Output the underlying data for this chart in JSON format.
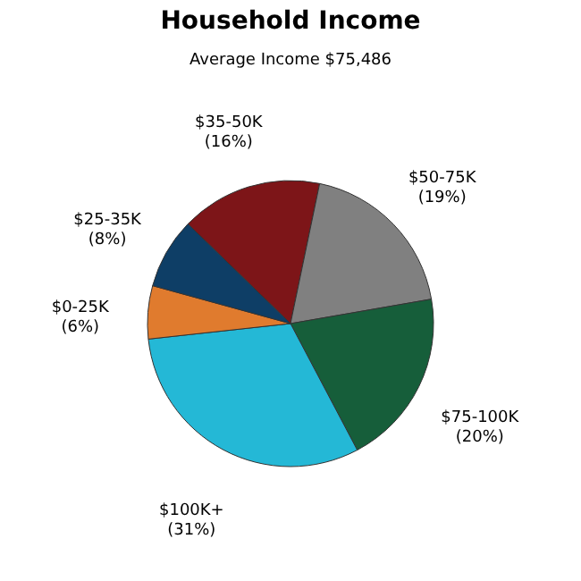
{
  "chart_data": {
    "type": "pie",
    "title": "Household Income",
    "subtitle": "Average Income  $75,486",
    "categories": [
      "$35-50K",
      "$50-75K",
      "$75-100K",
      "$100K+",
      "$0-25K",
      "$25-35K"
    ],
    "values": [
      16,
      19,
      20,
      31,
      6,
      8
    ],
    "value_labels": [
      "(16%)",
      "(19%)",
      "(20%)",
      "(31%)",
      "(6%)",
      "(8%)"
    ],
    "colors": [
      "#7d1518",
      "#808080",
      "#165e3a",
      "#24b8d6",
      "#e07b2e",
      "#0e3e66"
    ],
    "legend": false
  }
}
